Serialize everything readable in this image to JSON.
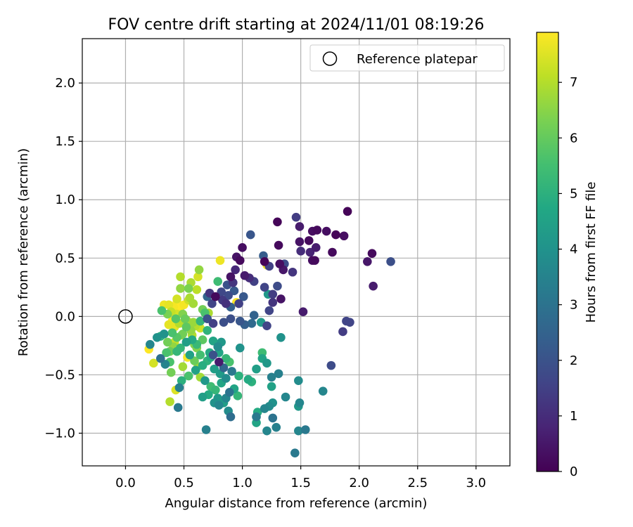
{
  "chart_data": {
    "type": "scatter",
    "title": "FOV centre drift starting at 2024/11/01 08:19:26",
    "xlabel": "Angular distance from reference (arcmin)",
    "ylabel": "Rotation from reference (arcmin)",
    "xlim": [
      -0.37,
      3.29
    ],
    "ylim": [
      -1.28,
      2.38
    ],
    "xticks": [
      0.0,
      0.5,
      1.0,
      1.5,
      2.0,
      2.5,
      3.0
    ],
    "xtick_labels": [
      "0.0",
      "0.5",
      "1.0",
      "1.5",
      "2.0",
      "2.5",
      "3.0"
    ],
    "yticks": [
      -1.0,
      -0.5,
      0.0,
      0.5,
      1.0,
      1.5,
      2.0
    ],
    "ytick_labels": [
      "−1.0",
      "−0.5",
      "0.0",
      "0.5",
      "1.0",
      "1.5",
      "2.0"
    ],
    "grid": true,
    "legend": {
      "position": "top-right",
      "entries": [
        {
          "label": "Reference platepar",
          "marker": "open-circle"
        }
      ]
    },
    "reference": {
      "x": 0.0,
      "y": 0.0
    },
    "colorbar": {
      "label": "Hours from first FF file",
      "colormap": "viridis",
      "range": [
        0,
        7.9
      ],
      "ticks": [
        0,
        1,
        2,
        3,
        4,
        5,
        6,
        7
      ],
      "tick_labels": [
        "0",
        "1",
        "2",
        "3",
        "4",
        "5",
        "6",
        "7"
      ]
    },
    "points": [
      [
        1.9,
        0.9,
        0.1
      ],
      [
        1.6,
        0.73,
        0.3
      ],
      [
        1.64,
        0.74,
        0.2
      ],
      [
        1.72,
        0.73,
        0.3
      ],
      [
        1.8,
        0.7,
        0.1
      ],
      [
        1.87,
        0.69,
        0.3
      ],
      [
        1.3,
        0.81,
        0.1
      ],
      [
        1.49,
        0.77,
        0.6
      ],
      [
        1.46,
        0.85,
        1.4
      ],
      [
        1.07,
        0.7,
        2.1
      ],
      [
        1.0,
        0.59,
        0.3
      ],
      [
        1.31,
        0.61,
        0.2
      ],
      [
        1.49,
        0.64,
        0.4
      ],
      [
        1.57,
        0.65,
        0.2
      ],
      [
        1.63,
        0.59,
        0.6
      ],
      [
        1.5,
        0.56,
        1.0
      ],
      [
        1.58,
        0.55,
        0.8
      ],
      [
        1.77,
        0.55,
        0.2
      ],
      [
        2.11,
        0.54,
        0.2
      ],
      [
        2.07,
        0.47,
        0.5
      ],
      [
        2.27,
        0.47,
        1.9
      ],
      [
        2.12,
        0.26,
        0.6
      ],
      [
        1.6,
        0.48,
        0.3
      ],
      [
        1.62,
        0.48,
        0.2
      ],
      [
        1.32,
        0.45,
        0.3
      ],
      [
        1.36,
        0.45,
        1.8
      ],
      [
        1.18,
        0.52,
        2.3
      ],
      [
        1.23,
        0.43,
        1.5
      ],
      [
        1.35,
        0.4,
        0.5
      ],
      [
        1.43,
        0.38,
        1.2
      ],
      [
        1.19,
        0.47,
        0.1
      ],
      [
        0.98,
        0.48,
        0.2
      ],
      [
        0.95,
        0.51,
        0.4
      ],
      [
        0.94,
        0.4,
        0.9
      ],
      [
        1.02,
        0.35,
        0.6
      ],
      [
        1.06,
        0.33,
        1.0
      ],
      [
        1.1,
        0.3,
        1.5
      ],
      [
        0.92,
        0.29,
        1.2
      ],
      [
        0.9,
        0.34,
        0.4
      ],
      [
        0.87,
        0.27,
        2.0
      ],
      [
        0.82,
        0.21,
        1.7
      ],
      [
        0.88,
        0.18,
        1.8
      ],
      [
        0.93,
        0.22,
        2.2
      ],
      [
        0.83,
        0.14,
        1.3
      ],
      [
        0.77,
        0.17,
        0.2
      ],
      [
        0.72,
        0.2,
        1.2
      ],
      [
        0.7,
        0.17,
        2.6
      ],
      [
        0.74,
        0.11,
        1.6
      ],
      [
        0.86,
        0.11,
        1.1
      ],
      [
        0.9,
        0.08,
        2.4
      ],
      [
        0.97,
        0.11,
        1.5
      ],
      [
        1.01,
        0.17,
        2.2
      ],
      [
        1.19,
        0.25,
        1.6
      ],
      [
        1.3,
        0.26,
        1.8
      ],
      [
        1.26,
        0.19,
        1.4
      ],
      [
        1.22,
        0.19,
        4.2
      ],
      [
        1.26,
        0.12,
        1.2
      ],
      [
        1.33,
        0.15,
        0.4
      ],
      [
        1.52,
        0.04,
        0.6
      ],
      [
        1.23,
        0.05,
        1.6
      ],
      [
        1.1,
        0.01,
        2.5
      ],
      [
        0.9,
        -0.02,
        1.9
      ],
      [
        0.98,
        -0.04,
        2.1
      ],
      [
        1.02,
        -0.07,
        2.4
      ],
      [
        1.08,
        -0.06,
        2.7
      ],
      [
        1.16,
        -0.05,
        4.2
      ],
      [
        1.21,
        -0.08,
        1.6
      ],
      [
        0.84,
        -0.05,
        1.9
      ],
      [
        0.75,
        -0.06,
        1.5
      ],
      [
        0.7,
        -0.02,
        2.0
      ],
      [
        0.68,
        0.03,
        5.6
      ],
      [
        0.66,
        0.06,
        6.2
      ],
      [
        0.58,
        0.11,
        6.8
      ],
      [
        0.54,
        0.14,
        7.3
      ],
      [
        0.5,
        0.1,
        7.8
      ],
      [
        0.46,
        0.07,
        7.9
      ],
      [
        0.44,
        0.12,
        7.9
      ],
      [
        0.41,
        0.08,
        7.8
      ],
      [
        0.39,
        0.04,
        7.2
      ],
      [
        0.37,
        0.1,
        7.6
      ],
      [
        0.33,
        0.1,
        7.7
      ],
      [
        0.43,
        -0.02,
        5.8
      ],
      [
        0.49,
        0.02,
        6.4
      ],
      [
        0.54,
        -0.05,
        7.2
      ],
      [
        0.52,
        -0.03,
        6.8
      ],
      [
        0.46,
        -0.06,
        7.0
      ],
      [
        0.42,
        -0.09,
        7.6
      ],
      [
        0.37,
        -0.07,
        7.6
      ],
      [
        0.4,
        -0.14,
        5.6
      ],
      [
        0.44,
        -0.18,
        5.8
      ],
      [
        0.49,
        -0.15,
        6.2
      ],
      [
        0.56,
        -0.12,
        6.6
      ],
      [
        0.6,
        -0.08,
        7.0
      ],
      [
        0.64,
        -0.04,
        5.2
      ],
      [
        0.57,
        -0.2,
        4.8
      ],
      [
        0.52,
        -0.22,
        4.4
      ],
      [
        0.47,
        -0.27,
        5.2
      ],
      [
        0.41,
        -0.26,
        6.6
      ],
      [
        0.36,
        -0.22,
        6.2
      ],
      [
        0.33,
        -0.15,
        4.0
      ],
      [
        0.3,
        -0.17,
        5.0
      ],
      [
        0.35,
        -0.31,
        5.6
      ],
      [
        0.44,
        -0.3,
        5.2
      ],
      [
        0.55,
        -0.33,
        4.5
      ],
      [
        0.61,
        -0.27,
        6.4
      ],
      [
        0.66,
        -0.2,
        5.9
      ],
      [
        0.7,
        -0.12,
        5.1
      ],
      [
        0.75,
        -0.21,
        4.6
      ],
      [
        0.79,
        -0.26,
        3.8
      ],
      [
        0.82,
        -0.22,
        4.2
      ],
      [
        0.75,
        -0.33,
        2.0
      ],
      [
        0.7,
        -0.38,
        5.1
      ],
      [
        0.66,
        -0.42,
        4.9
      ],
      [
        0.6,
        -0.46,
        4.5
      ],
      [
        0.64,
        -0.52,
        6.8
      ],
      [
        0.54,
        -0.51,
        5.6
      ],
      [
        0.48,
        -0.55,
        5.0
      ],
      [
        0.43,
        -0.63,
        7.5
      ],
      [
        0.38,
        -0.73,
        7.0
      ],
      [
        0.45,
        -0.78,
        3.2
      ],
      [
        0.46,
        -0.61,
        3.4
      ],
      [
        0.39,
        -0.48,
        6.2
      ],
      [
        0.34,
        -0.41,
        3.5
      ],
      [
        0.3,
        -0.36,
        2.9
      ],
      [
        0.24,
        -0.4,
        7.4
      ],
      [
        0.2,
        -0.28,
        7.9
      ],
      [
        0.21,
        -0.24,
        3.6
      ],
      [
        0.27,
        -0.18,
        4.0
      ],
      [
        0.38,
        -0.39,
        5.6
      ],
      [
        0.64,
        -0.33,
        5.5
      ],
      [
        0.72,
        -0.31,
        4.8
      ],
      [
        0.76,
        -0.45,
        4.4
      ],
      [
        0.81,
        -0.49,
        4.3
      ],
      [
        0.86,
        -0.53,
        3.8
      ],
      [
        0.82,
        -0.57,
        4.6
      ],
      [
        0.77,
        -0.63,
        5.2
      ],
      [
        0.73,
        -0.6,
        5.4
      ],
      [
        0.71,
        -0.67,
        4.8
      ],
      [
        0.79,
        -0.7,
        4.2
      ],
      [
        0.84,
        -0.74,
        4.4
      ],
      [
        0.8,
        -0.76,
        3.6
      ],
      [
        0.76,
        -0.74,
        4.0
      ],
      [
        0.86,
        -0.7,
        3.6
      ],
      [
        0.89,
        -0.65,
        3.0
      ],
      [
        0.93,
        -0.62,
        4.6
      ],
      [
        0.96,
        -0.68,
        5.2
      ],
      [
        0.97,
        -0.51,
        5.0
      ],
      [
        0.91,
        -0.47,
        3.2
      ],
      [
        0.84,
        -0.44,
        2.6
      ],
      [
        0.8,
        -0.39,
        0.6
      ],
      [
        0.86,
        -0.36,
        5.2
      ],
      [
        0.89,
        -0.39,
        5.6
      ],
      [
        0.8,
        -0.31,
        4.6
      ],
      [
        0.73,
        -0.35,
        4.8
      ],
      [
        0.68,
        -0.55,
        4.2
      ],
      [
        0.66,
        -0.69,
        4.4
      ],
      [
        0.69,
        -0.97,
        3.4
      ],
      [
        0.88,
        -0.81,
        3.8
      ],
      [
        0.9,
        -0.86,
        2.8
      ],
      [
        0.98,
        -0.27,
        4.0
      ],
      [
        1.05,
        -0.54,
        4.8
      ],
      [
        1.08,
        -0.56,
        5.0
      ],
      [
        1.12,
        -0.45,
        4.4
      ],
      [
        1.17,
        -0.31,
        5.4
      ],
      [
        1.17,
        -0.36,
        4.6
      ],
      [
        1.21,
        -0.4,
        4.2
      ],
      [
        1.25,
        -0.52,
        3.4
      ],
      [
        1.25,
        -0.6,
        4.5
      ],
      [
        1.31,
        -0.49,
        3.4
      ],
      [
        1.33,
        -0.18,
        4.0
      ],
      [
        1.48,
        -0.55,
        3.8
      ],
      [
        1.49,
        -0.74,
        3.6
      ],
      [
        1.48,
        -0.77,
        4.2
      ],
      [
        1.37,
        -0.69,
        3.6
      ],
      [
        1.26,
        -0.74,
        4.0
      ],
      [
        1.23,
        -0.77,
        3.8
      ],
      [
        1.19,
        -0.79,
        3.6
      ],
      [
        1.26,
        -0.87,
        3.0
      ],
      [
        1.21,
        -0.98,
        3.6
      ],
      [
        1.13,
        -0.82,
        4.8
      ],
      [
        1.12,
        -0.91,
        4.6
      ],
      [
        1.12,
        -0.86,
        3.2
      ],
      [
        1.29,
        -0.95,
        3.4
      ],
      [
        1.48,
        -0.98,
        3.6
      ],
      [
        1.54,
        -0.97,
        3.2
      ],
      [
        1.45,
        -1.17,
        3.2
      ],
      [
        1.69,
        -0.64,
        3.6
      ],
      [
        1.76,
        -0.42,
        1.8
      ],
      [
        1.86,
        -0.13,
        1.4
      ],
      [
        1.89,
        -0.04,
        1.6
      ],
      [
        1.92,
        -0.05,
        1.6
      ],
      [
        0.53,
        -0.35,
        7.8
      ],
      [
        0.59,
        -0.38,
        6.1
      ],
      [
        0.62,
        -0.43,
        6.8
      ],
      [
        0.47,
        0.24,
        6.6
      ],
      [
        0.54,
        0.24,
        6.3
      ],
      [
        0.56,
        0.29,
        6.9
      ],
      [
        0.61,
        0.23,
        7.1
      ],
      [
        0.47,
        0.34,
        7.0
      ],
      [
        0.62,
        0.34,
        7.4
      ],
      [
        0.63,
        0.4,
        6.6
      ],
      [
        0.81,
        0.48,
        7.7
      ],
      [
        0.79,
        0.3,
        5.4
      ],
      [
        1.21,
        0.44,
        7.7
      ],
      [
        0.95,
        0.12,
        7.9
      ],
      [
        0.55,
        0.16,
        6.9
      ],
      [
        0.44,
        0.02,
        7.4
      ],
      [
        0.51,
        -0.02,
        6.1
      ],
      [
        0.4,
        -0.04,
        7.9
      ],
      [
        0.48,
        -0.16,
        6.6
      ],
      [
        0.52,
        -0.09,
        5.9
      ],
      [
        0.57,
        -0.16,
        7.0
      ],
      [
        0.59,
        -0.24,
        6.4
      ],
      [
        0.49,
        -0.43,
        6.8
      ],
      [
        0.61,
        -0.24,
        5.3
      ],
      [
        0.36,
        0.02,
        6.3
      ],
      [
        0.31,
        0.05,
        5.6
      ],
      [
        0.64,
        -0.1,
        7.3
      ],
      [
        0.71,
        0.03,
        6.9
      ],
      [
        0.42,
        -0.22,
        7.2
      ],
      [
        0.58,
        -0.05,
        6.7
      ],
      [
        0.44,
        0.15,
        7.4
      ],
      [
        0.38,
        -0.3,
        6.1
      ]
    ]
  }
}
